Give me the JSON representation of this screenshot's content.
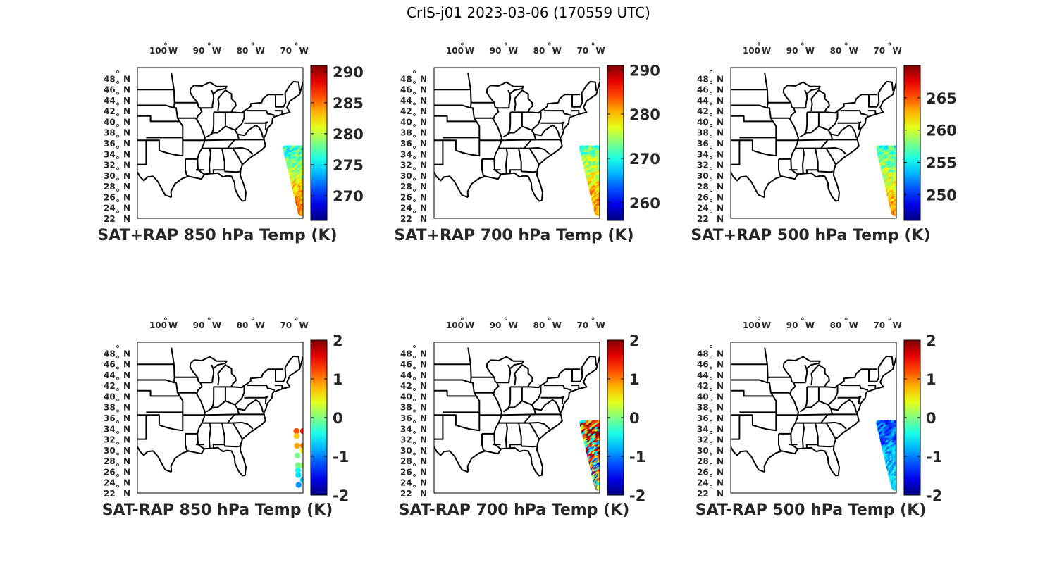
{
  "title": "CrIS-j01 2023-03-06 (170559 UTC)",
  "map": {
    "lon_ticks": [
      {
        "value": -100,
        "label": "100",
        "suffix": "W"
      },
      {
        "value": -90,
        "label": "90",
        "suffix": "W"
      },
      {
        "value": -80,
        "label": "80",
        "suffix": "W"
      },
      {
        "value": -70,
        "label": "70",
        "suffix": "W"
      }
    ],
    "lat_ticks": [
      {
        "value": 48,
        "label": "48",
        "suffix": "N"
      },
      {
        "value": 46,
        "label": "46",
        "suffix": "N"
      },
      {
        "value": 44,
        "label": "44",
        "suffix": "N"
      },
      {
        "value": 42,
        "label": "42",
        "suffix": "N"
      },
      {
        "value": 40,
        "label": "40",
        "suffix": "N"
      },
      {
        "value": 38,
        "label": "38",
        "suffix": "N"
      },
      {
        "value": 36,
        "label": "36",
        "suffix": "N"
      },
      {
        "value": 34,
        "label": "34",
        "suffix": "N"
      },
      {
        "value": 32,
        "label": "32",
        "suffix": "N"
      },
      {
        "value": 30,
        "label": "30",
        "suffix": "N"
      },
      {
        "value": 28,
        "label": "28",
        "suffix": "N"
      },
      {
        "value": 26,
        "label": "26",
        "suffix": "N"
      },
      {
        "value": 24,
        "label": "24",
        "suffix": "N"
      },
      {
        "value": 22,
        "label": "22",
        "suffix": "N"
      }
    ],
    "lon_range": [
      -105,
      -67
    ],
    "lat_range": [
      22,
      50
    ],
    "colormap": "jet"
  },
  "chart_data": [
    {
      "type": "scatter",
      "title": "SAT+RAP 850 hPa Temp (K)",
      "clim": [
        266,
        291
      ],
      "colorbar_ticks": [
        {
          "value": 290,
          "label": "290"
        },
        {
          "value": 285,
          "label": "285"
        },
        {
          "value": 280,
          "label": "280"
        },
        {
          "value": 275,
          "label": "275"
        },
        {
          "value": 270,
          "label": "270"
        }
      ],
      "swath": {
        "lat_range": [
          23.0,
          35.0
        ],
        "lon_west_at_top": -71.0,
        "lon_west_at_bottom": -67.5,
        "value_top": 276,
        "value_bottom": 286
      }
    },
    {
      "type": "scatter",
      "title": "SAT+RAP 700 hPa Temp (K)",
      "clim": [
        256,
        291
      ],
      "colorbar_ticks": [
        {
          "value": 290,
          "label": "290"
        },
        {
          "value": 280,
          "label": "280"
        },
        {
          "value": 270,
          "label": "270"
        },
        {
          "value": 260,
          "label": "260"
        }
      ],
      "swath": {
        "lat_range": [
          23.0,
          35.0
        ],
        "lon_west_at_top": -71.0,
        "lon_west_at_bottom": -67.5,
        "value_top": 272,
        "value_bottom": 283
      }
    },
    {
      "type": "scatter",
      "title": "SAT+RAP 500 hPa Temp (K)",
      "clim": [
        246,
        270
      ],
      "colorbar_ticks": [
        {
          "value": 265,
          "label": "265"
        },
        {
          "value": 260,
          "label": "260"
        },
        {
          "value": 255,
          "label": "255"
        },
        {
          "value": 250,
          "label": "250"
        }
      ],
      "swath": {
        "lat_range": [
          23.0,
          35.0
        ],
        "lon_west_at_top": -71.0,
        "lon_west_at_bottom": -67.5,
        "value_top": 256,
        "value_bottom": 264
      }
    },
    {
      "type": "scatter",
      "title": "SAT-RAP 850 hPa Temp (K)",
      "clim": [
        -2,
        2
      ],
      "colorbar_ticks": [
        {
          "value": 2,
          "label": "2"
        },
        {
          "value": 1,
          "label": "1"
        },
        {
          "value": 0,
          "label": "0"
        },
        {
          "value": -1,
          "label": "-1"
        },
        {
          "value": -2,
          "label": "-2"
        }
      ],
      "swath": {
        "lat_range": [
          23.5,
          33.5
        ],
        "lon_west_at_top": -68.5,
        "lon_west_at_bottom": -68.0,
        "value_top": 1.3,
        "value_bottom": -0.8,
        "sparse": true
      }
    },
    {
      "type": "scatter",
      "title": "SAT-RAP 700 hPa Temp (K)",
      "clim": [
        -2,
        2
      ],
      "colorbar_ticks": [
        {
          "value": 2,
          "label": "2"
        },
        {
          "value": 1,
          "label": "1"
        },
        {
          "value": 0,
          "label": "0"
        },
        {
          "value": -1,
          "label": "-1"
        },
        {
          "value": -2,
          "label": "-2"
        }
      ],
      "swath": {
        "lat_range": [
          23.0,
          35.0
        ],
        "lon_west_at_top": -71.0,
        "lon_west_at_bottom": -67.5,
        "value_top": 1.2,
        "value_bottom": -0.4,
        "noisy": true
      }
    },
    {
      "type": "scatter",
      "title": "SAT-RAP 500 hPa Temp (K)",
      "clim": [
        -2,
        2
      ],
      "colorbar_ticks": [
        {
          "value": 2,
          "label": "2"
        },
        {
          "value": 1,
          "label": "1"
        },
        {
          "value": 0,
          "label": "0"
        },
        {
          "value": -1,
          "label": "-1"
        },
        {
          "value": -2,
          "label": "-2"
        }
      ],
      "swath": {
        "lat_range": [
          23.0,
          35.0
        ],
        "lon_west_at_top": -71.0,
        "lon_west_at_bottom": -67.5,
        "value_top": -1.2,
        "value_bottom": -0.5
      }
    }
  ]
}
